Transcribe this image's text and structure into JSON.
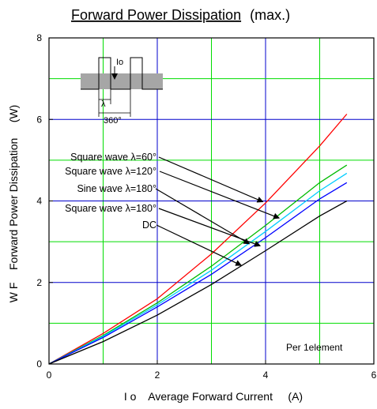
{
  "chart_data": {
    "type": "line",
    "title_main": "Forward Power Dissipation",
    "title_suffix": "(max.)",
    "xlabel": "I o    Average Forward Current     (A)",
    "ylabel": "W F    Forward Power Dissipation     (W)",
    "xlim": [
      0,
      6
    ],
    "ylim": [
      0,
      8
    ],
    "x_ticks": [
      "0",
      "2",
      "4",
      "6"
    ],
    "y_ticks": [
      "0",
      "2",
      "4",
      "6",
      "8"
    ],
    "grid": true,
    "note": "Per 1element",
    "inset": {
      "io": "Io",
      "lambda": "λ",
      "deg360": "360°"
    },
    "colors": {
      "grid_green": "#00dd00",
      "grid_blue": "#0000cc",
      "axes": "#000000"
    },
    "series": [
      {
        "name": "Square wave λ=60°",
        "color": "#ff0000",
        "x": [
          0,
          1,
          2,
          3,
          4,
          5,
          5.5
        ],
        "y": [
          0,
          0.75,
          1.6,
          2.7,
          3.95,
          5.35,
          6.13
        ]
      },
      {
        "name": "Square wave λ=120°",
        "color": "#00bb00",
        "x": [
          0,
          1,
          2,
          3,
          4,
          5,
          5.5
        ],
        "y": [
          0,
          0.7,
          1.5,
          2.4,
          3.4,
          4.45,
          4.88
        ]
      },
      {
        "name": "Sine wave λ=180°",
        "color": "#00ccff",
        "x": [
          0,
          1,
          2,
          3,
          4,
          5,
          5.5
        ],
        "y": [
          0,
          0.68,
          1.45,
          2.3,
          3.25,
          4.25,
          4.68
        ]
      },
      {
        "name": "Square wave λ=180°",
        "color": "#0000ff",
        "x": [
          0,
          1,
          2,
          3,
          4,
          5,
          5.5
        ],
        "y": [
          0,
          0.65,
          1.4,
          2.2,
          3.1,
          4.05,
          4.45
        ]
      },
      {
        "name": "DC",
        "color": "#000000",
        "x": [
          0,
          1,
          2,
          3,
          4,
          5,
          5.5
        ],
        "y": [
          0,
          0.55,
          1.2,
          1.95,
          2.78,
          3.63,
          4.0
        ]
      }
    ],
    "annotations": [
      {
        "label": "Square wave λ=60°",
        "target": [
          3.95,
          3.98
        ]
      },
      {
        "label": "Square wave λ=120°",
        "target": [
          4.25,
          3.58
        ]
      },
      {
        "label": "Sine wave λ=180°",
        "target": [
          3.7,
          2.95
        ]
      },
      {
        "label": "Square wave λ=180°",
        "target": [
          3.9,
          2.9
        ]
      },
      {
        "label": "DC",
        "target": [
          3.55,
          2.42
        ]
      }
    ]
  }
}
